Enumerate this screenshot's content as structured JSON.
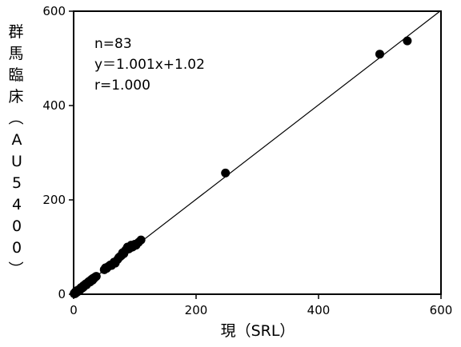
{
  "chart_data": {
    "type": "scatter",
    "xlabel": "現（SRL）",
    "ylabel": "群馬臨床（AU5400）",
    "xlim": [
      0,
      600
    ],
    "ylim": [
      0,
      600
    ],
    "xticks": [
      0,
      200,
      400,
      600
    ],
    "yticks": [
      0,
      200,
      400,
      600
    ],
    "grid": false,
    "annotations": [
      "n=83",
      "y＝1.001x+1.02",
      "r=1.000"
    ],
    "regression": {
      "slope": 1.001,
      "intercept": 1.02
    },
    "series": [
      {
        "points": [
          [
            1,
            2
          ],
          [
            2,
            3
          ],
          [
            3,
            3
          ],
          [
            3,
            5
          ],
          [
            4,
            4
          ],
          [
            5,
            6
          ],
          [
            6,
            7
          ],
          [
            6,
            5
          ],
          [
            7,
            8
          ],
          [
            8,
            9
          ],
          [
            9,
            10
          ],
          [
            10,
            11
          ],
          [
            11,
            12
          ],
          [
            12,
            12
          ],
          [
            13,
            14
          ],
          [
            14,
            15
          ],
          [
            15,
            16
          ],
          [
            16,
            18
          ],
          [
            18,
            19
          ],
          [
            19,
            21
          ],
          [
            20,
            22
          ],
          [
            22,
            23
          ],
          [
            24,
            26
          ],
          [
            26,
            28
          ],
          [
            28,
            29
          ],
          [
            30,
            32
          ],
          [
            32,
            34
          ],
          [
            34,
            35
          ],
          [
            36,
            37
          ],
          [
            3,
            2
          ],
          [
            4,
            6
          ],
          [
            5,
            4
          ],
          [
            7,
            6
          ],
          [
            2,
            1
          ],
          [
            1,
            1
          ],
          [
            8,
            7
          ],
          [
            9,
            8
          ],
          [
            10,
            9
          ],
          [
            11,
            10
          ],
          [
            6,
            8
          ],
          [
            12,
            14
          ],
          [
            14,
            13
          ],
          [
            16,
            15
          ],
          [
            17,
            17
          ],
          [
            21,
            20
          ],
          [
            23,
            24
          ],
          [
            25,
            25
          ],
          [
            27,
            26
          ],
          [
            29,
            31
          ],
          [
            31,
            30
          ],
          [
            33,
            33
          ],
          [
            35,
            36
          ],
          [
            37,
            38
          ],
          [
            50,
            52
          ],
          [
            52,
            56
          ],
          [
            54,
            55
          ],
          [
            56,
            58
          ],
          [
            58,
            60
          ],
          [
            60,
            62
          ],
          [
            62,
            61
          ],
          [
            66,
            68
          ],
          [
            68,
            66
          ],
          [
            72,
            74
          ],
          [
            74,
            78
          ],
          [
            76,
            80
          ],
          [
            78,
            82
          ],
          [
            80,
            88
          ],
          [
            82,
            86
          ],
          [
            84,
            92
          ],
          [
            86,
            95
          ],
          [
            88,
            100
          ],
          [
            90,
            96
          ],
          [
            92,
            98
          ],
          [
            94,
            104
          ],
          [
            96,
            100
          ],
          [
            98,
            102
          ],
          [
            100,
            106
          ],
          [
            102,
            104
          ],
          [
            106,
            110
          ],
          [
            110,
            115
          ],
          [
            248,
            257
          ],
          [
            500,
            509
          ],
          [
            545,
            537
          ]
        ]
      }
    ]
  }
}
